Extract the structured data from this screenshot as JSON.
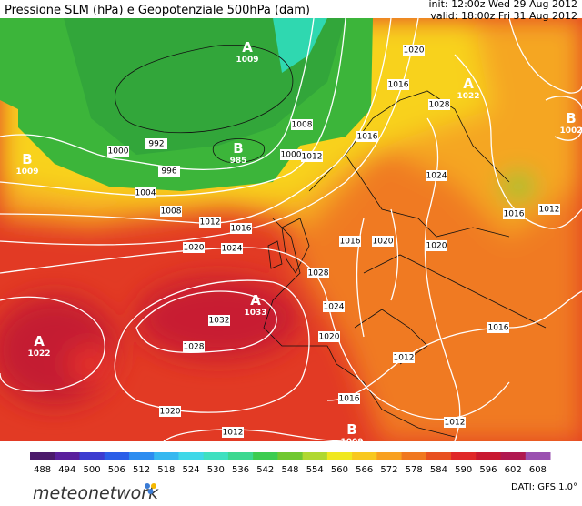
{
  "header": {
    "title": "Pressione SLM (hPa) e Geopotenziale 500hPa (dam)",
    "init": "init: 12:00z Wed 29 Aug 2012",
    "valid": "valid: 18:00z Fri 31 Aug 2012"
  },
  "map": {
    "centers": [
      {
        "letter": "A",
        "value": "1009"
      },
      {
        "letter": "B",
        "value": "985"
      },
      {
        "letter": "A",
        "value": "1022"
      },
      {
        "letter": "B",
        "value": "1002"
      },
      {
        "letter": "A",
        "value": "1033"
      },
      {
        "letter": "A",
        "value": "1022"
      },
      {
        "letter": "B",
        "value": "1009"
      },
      {
        "letter": "B",
        "value": "1009"
      }
    ],
    "isobar_labels": [
      "1000",
      "992",
      "996",
      "1004",
      "1008",
      "1012",
      "1016",
      "1020",
      "1024",
      "1032",
      "1028",
      "1020",
      "1012",
      "1016",
      "1012",
      "1012",
      "1016",
      "1020",
      "1016",
      "1012",
      "1028",
      "1024",
      "1020",
      "1008",
      "1012",
      "1000",
      "1016",
      "1020",
      "1016",
      "1028",
      "1024",
      "1020",
      "1016"
    ]
  },
  "legend": {
    "ticks": [
      "488",
      "494",
      "500",
      "506",
      "512",
      "518",
      "524",
      "530",
      "536",
      "542",
      "548",
      "554",
      "560",
      "566",
      "572",
      "578",
      "584",
      "590",
      "596",
      "602",
      "608"
    ],
    "colors": [
      "#4b1a6b",
      "#5a1f9c",
      "#3c3cd0",
      "#2a5ee8",
      "#2c8cf0",
      "#35b8f0",
      "#3fd8e8",
      "#3fe0c0",
      "#3cd890",
      "#3ccc50",
      "#70c830",
      "#b0d830",
      "#f0e820",
      "#f8c820",
      "#f8a020",
      "#f07820",
      "#e85020",
      "#e02828",
      "#c81830",
      "#b01850",
      "#9a50b0"
    ]
  },
  "footer": {
    "logo": "meteonetwork",
    "source": "DATI: GFS 1.0°"
  }
}
